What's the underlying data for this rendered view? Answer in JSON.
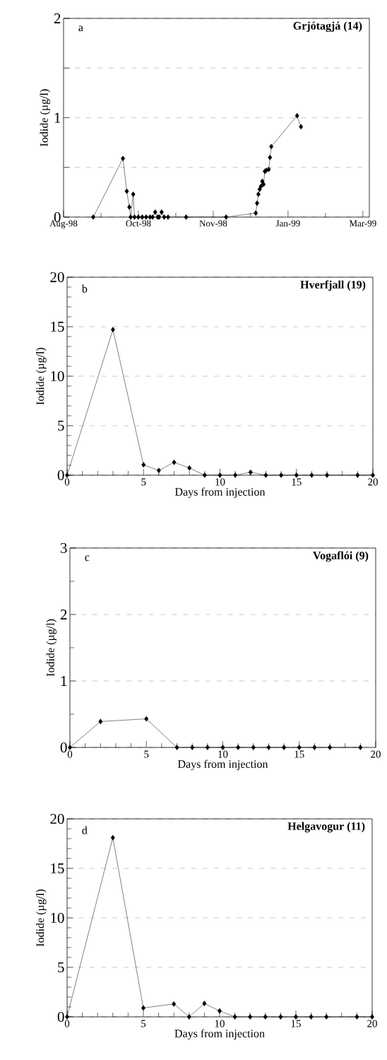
{
  "chart_data": [
    {
      "type": "line",
      "title": "Grjótagjá (14)",
      "annotations": [
        "a"
      ],
      "ylabel": "Iodide (µg/l)",
      "color": "#000000",
      "marker": "diamond",
      "grid": "y",
      "x": [
        "1998-08-27",
        "1998-09-19",
        "1998-09-22",
        "1998-09-24",
        "1998-09-25",
        "1998-09-27",
        "1998-09-28",
        "1998-10-01",
        "1998-10-04",
        "1998-10-07",
        "1998-10-10",
        "1998-10-12",
        "1998-10-14",
        "1998-10-16",
        "1998-10-17",
        "1998-10-19",
        "1998-10-21",
        "1998-10-24",
        "1998-11-07",
        "1998-12-08",
        "1998-12-31",
        "1999-01-01",
        "1999-01-02",
        "1999-01-03",
        "1999-01-04",
        "1999-01-05",
        "1999-01-06",
        "1999-01-07",
        "1999-01-08",
        "1999-01-10",
        "1999-01-11",
        "1999-01-12",
        "1999-02-01",
        "1999-02-04"
      ],
      "values": [
        0,
        0.59,
        0.26,
        0.1,
        0,
        0.23,
        0,
        0,
        0,
        0,
        0,
        0,
        0.05,
        0,
        0,
        0.05,
        0,
        0,
        0,
        0,
        0.04,
        0.14,
        0.23,
        0.28,
        0.31,
        0.36,
        0.33,
        0.46,
        0.47,
        0.48,
        0.6,
        0.71,
        1.02,
        0.91
      ],
      "xlim": [
        "1998-08-04",
        "1999-03-29"
      ],
      "xticks": [
        {
          "value": "1998-08-04",
          "label": "Aug-98"
        },
        {
          "value": "1998-10-01",
          "label": "Oct-98"
        },
        {
          "value": "1998-11-28",
          "label": "Nov-98"
        },
        {
          "value": "1999-01-25",
          "label": "Jan-99"
        },
        {
          "value": "1999-03-24",
          "label": "Mar-99"
        }
      ],
      "ylim": [
        0,
        2
      ],
      "yticks": [
        0,
        {
          "value": 0.5,
          "label": null
        },
        1,
        {
          "value": 1.5,
          "label": null
        },
        2
      ]
    },
    {
      "type": "line",
      "title": "Hverfjall (19)",
      "annotations": [
        "b"
      ],
      "xlabel": "Days from injection",
      "ylabel": "Iodide (µg/l)",
      "color": "#000000",
      "marker": "diamond",
      "grid": "y",
      "x": [
        0,
        3,
        5,
        6,
        7,
        8,
        9,
        10,
        11,
        12,
        13,
        14,
        15,
        16,
        17,
        19,
        20
      ],
      "values": [
        0,
        14.7,
        1.05,
        0.48,
        1.3,
        0.73,
        0,
        0,
        0,
        0.3,
        0,
        0,
        0,
        0,
        0,
        0,
        0
      ],
      "xlim": [
        0,
        20
      ],
      "xticks": [
        0,
        5,
        10,
        15,
        20
      ],
      "ylim": [
        0,
        20
      ],
      "yticks": [
        0,
        5,
        10,
        15,
        20
      ]
    },
    {
      "type": "line",
      "title": "Vogaflói (9)",
      "annotations": [
        "c"
      ],
      "xlabel": "Days from injection",
      "ylabel": "Iodide (µg/l)",
      "color": "#000000",
      "marker": "diamond",
      "grid": "y",
      "x": [
        0,
        2,
        5,
        7,
        8,
        9,
        10,
        11,
        12,
        13,
        14,
        15,
        16,
        17,
        19
      ],
      "values": [
        0,
        0.39,
        0.43,
        0,
        0,
        0,
        0,
        0,
        0,
        0,
        0,
        0,
        0,
        0,
        0
      ],
      "xlim": [
        0,
        20
      ],
      "xticks": [
        0,
        5,
        10,
        15,
        20
      ],
      "ylim": [
        0,
        3
      ],
      "yticks": [
        0,
        1,
        2,
        3
      ]
    },
    {
      "type": "line",
      "title": "Helgavogur (11)",
      "annotations": [
        "d"
      ],
      "xlabel": "Days from injection",
      "ylabel": "Iodide (µg/l)",
      "color": "#000000",
      "marker": "diamond",
      "grid": "y",
      "x": [
        0,
        3,
        5,
        7,
        8,
        9,
        10,
        11,
        12,
        13,
        14,
        15,
        16,
        17,
        19,
        20
      ],
      "values": [
        0,
        18.1,
        0.9,
        1.3,
        0,
        1.35,
        0.6,
        0,
        0,
        0,
        0,
        0,
        0,
        0,
        0,
        0
      ],
      "xlim": [
        0,
        20
      ],
      "xticks": [
        0,
        5,
        10,
        15,
        20
      ],
      "ylim": [
        0,
        20
      ],
      "yticks": [
        0,
        5,
        10,
        15,
        20
      ]
    }
  ]
}
